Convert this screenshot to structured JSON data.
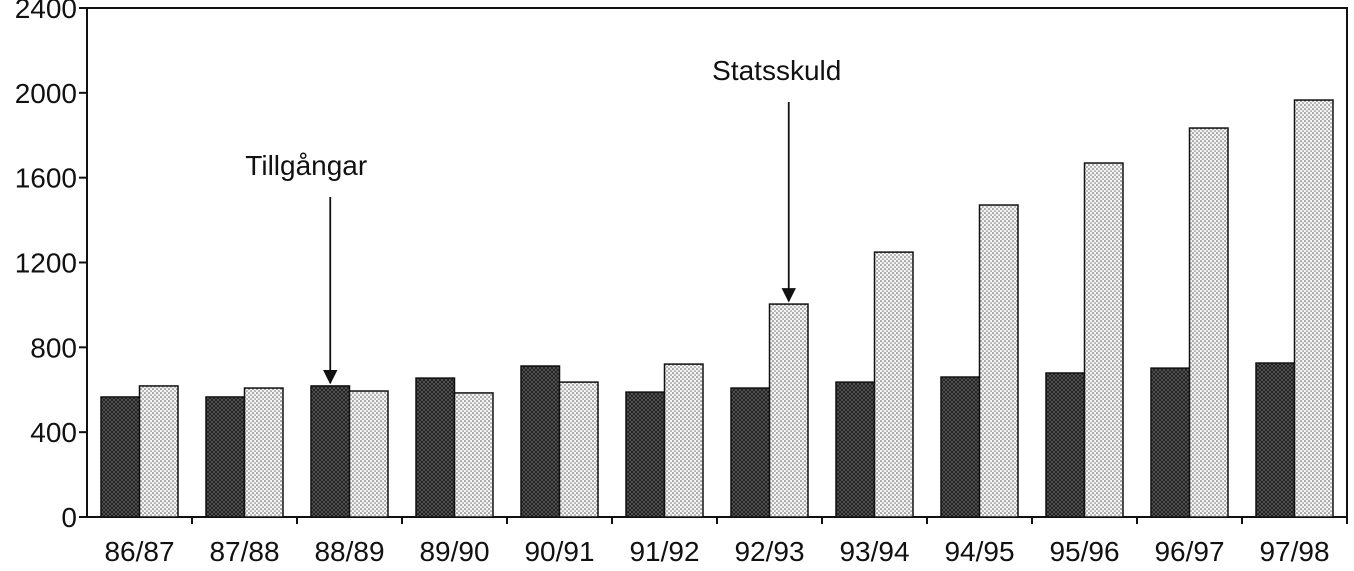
{
  "chart_data": {
    "type": "bar",
    "title": "",
    "xlabel": "",
    "ylabel": "",
    "ylim": [
      0,
      2400
    ],
    "yticks": [
      0,
      400,
      800,
      1200,
      1600,
      2000,
      2400
    ],
    "grid": false,
    "categories": [
      "86/87",
      "87/88",
      "88/89",
      "89/90",
      "90/91",
      "91/92",
      "92/93",
      "93/94",
      "94/95",
      "95/96",
      "96/97",
      "97/98"
    ],
    "series": [
      {
        "name": "Tillgångar",
        "pattern": "dark-crosshatch",
        "values": [
          566,
          566,
          618,
          655,
          712,
          589,
          608,
          636,
          660,
          679,
          702,
          726
        ]
      },
      {
        "name": "Statsskuld",
        "pattern": "light-dots",
        "values": [
          618,
          608,
          594,
          585,
          636,
          721,
          1004,
          1249,
          1471,
          1669,
          1834,
          1966
        ]
      }
    ],
    "annotations": [
      {
        "text": "Tillgångar",
        "series": 0,
        "category": "88/89"
      },
      {
        "text": "Statsskuld",
        "series": 1,
        "category": "92/93"
      }
    ]
  }
}
